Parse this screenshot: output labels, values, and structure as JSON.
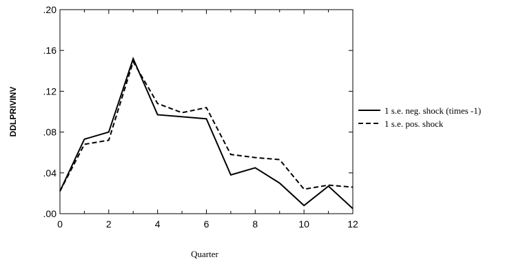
{
  "chart_data": {
    "type": "line",
    "title": "",
    "xlabel": "Quarter",
    "ylabel": "DDLPRIVINV",
    "xlim": [
      0,
      12
    ],
    "ylim": [
      0.0,
      0.2
    ],
    "x_ticks": [
      0,
      2,
      4,
      6,
      8,
      10,
      12
    ],
    "x_tick_labels": [
      "0",
      "2",
      "4",
      "6",
      "8",
      "10",
      "12"
    ],
    "y_ticks": [
      0.0,
      0.04,
      0.08,
      0.12,
      0.16,
      0.2
    ],
    "y_tick_labels": [
      ".00",
      ".04",
      ".08",
      ".12",
      ".16",
      ".20"
    ],
    "grid": false,
    "legend_position": "right",
    "x": [
      0,
      1,
      2,
      3,
      4,
      5,
      6,
      7,
      8,
      9,
      10,
      11,
      12
    ],
    "series": [
      {
        "name": "1 s.e. neg. shock (times -1)",
        "style": "solid",
        "color": "#000000",
        "values": [
          0.022,
          0.073,
          0.08,
          0.152,
          0.097,
          0.095,
          0.093,
          0.038,
          0.045,
          0.03,
          0.008,
          0.027,
          0.005
        ]
      },
      {
        "name": "1 s.e. pos. shock",
        "style": "dashed",
        "color": "#000000",
        "values": [
          0.022,
          0.068,
          0.072,
          0.149,
          0.108,
          0.099,
          0.104,
          0.058,
          0.055,
          0.053,
          0.024,
          0.028,
          0.026
        ]
      }
    ]
  }
}
